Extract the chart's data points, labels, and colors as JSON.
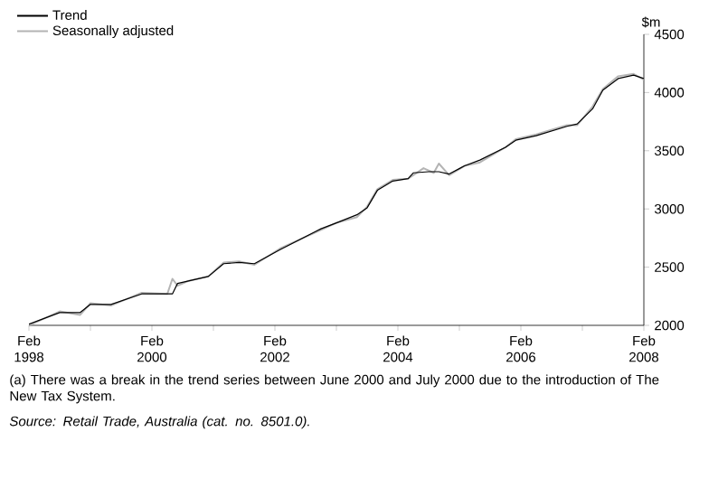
{
  "chart_data": {
    "type": "line",
    "ylabel": "$m",
    "xlim": [
      "1998-02",
      "2008-02"
    ],
    "ylim": [
      2000,
      4500
    ],
    "yticks": [
      2000,
      2500,
      3000,
      3500,
      4000,
      4500
    ],
    "xticks": [
      {
        "value": "1998-02",
        "label": "Feb 1998"
      },
      {
        "value": "1999-02",
        "label": null
      },
      {
        "value": "2000-02",
        "label": "Feb 2000"
      },
      {
        "value": "2001-02",
        "label": null
      },
      {
        "value": "2002-02",
        "label": "Feb 2002"
      },
      {
        "value": "2003-02",
        "label": null
      },
      {
        "value": "2004-02",
        "label": "Feb 2004"
      },
      {
        "value": "2005-02",
        "label": null
      },
      {
        "value": "2006-02",
        "label": "Feb 2006"
      },
      {
        "value": "2007-02",
        "label": null
      },
      {
        "value": "2008-02",
        "label": "Feb 2008"
      }
    ],
    "legend": "top left",
    "grid": false,
    "series": [
      {
        "name": "Trend",
        "color": "#000000",
        "x": [
          "1998-02",
          "1998-08",
          "1998-12",
          "1999-02",
          "1999-06",
          "1999-12",
          "2000-06",
          "2000-07",
          "2001-01",
          "2001-04",
          "2001-07",
          "2001-10",
          "2002-03",
          "2002-11",
          "2003-02",
          "2003-06",
          "2003-08",
          "2003-10",
          "2004-01",
          "2004-04",
          "2004-05",
          "2004-08",
          "2004-10",
          "2004-12",
          "2005-03",
          "2005-06",
          "2005-11",
          "2006-01",
          "2006-05",
          "2006-11",
          "2007-01",
          "2007-04",
          "2007-06",
          "2007-09",
          "2007-12",
          "2008-02"
        ],
        "values": [
          2010,
          2110,
          2110,
          2180,
          2180,
          2270,
          2270,
          2360,
          2420,
          2530,
          2540,
          2530,
          2650,
          2830,
          2880,
          2950,
          3010,
          3160,
          3240,
          3260,
          3310,
          3320,
          3320,
          3300,
          3370,
          3420,
          3530,
          3590,
          3630,
          3710,
          3730,
          3860,
          4020,
          4120,
          4150,
          4120
        ]
      },
      {
        "name": "Seasonally adjusted",
        "color": "#b4b4b4",
        "x": [
          "1998-02",
          "1998-08",
          "1998-12",
          "1999-02",
          "1999-06",
          "1999-12",
          "2000-05",
          "2000-06",
          "2000-07",
          "2000-09",
          "2001-01",
          "2001-04",
          "2001-07",
          "2001-10",
          "2002-03",
          "2002-07",
          "2002-11",
          "2003-02",
          "2003-06",
          "2003-08",
          "2003-10",
          "2004-01",
          "2004-04",
          "2004-07",
          "2004-09",
          "2004-10",
          "2004-12",
          "2005-03",
          "2005-06",
          "2005-11",
          "2006-01",
          "2006-05",
          "2006-11",
          "2007-01",
          "2007-04",
          "2007-06",
          "2007-09",
          "2007-12",
          "2008-02"
        ],
        "values": [
          2000,
          2120,
          2090,
          2190,
          2170,
          2280,
          2270,
          2400,
          2340,
          2380,
          2420,
          2540,
          2550,
          2520,
          2660,
          2740,
          2820,
          2880,
          2930,
          3020,
          3170,
          3250,
          3260,
          3350,
          3310,
          3390,
          3290,
          3370,
          3400,
          3530,
          3600,
          3640,
          3720,
          3720,
          3880,
          4030,
          4140,
          4160,
          4110
        ]
      }
    ],
    "annotations": [
      "(a) There was a break in the trend series between June 2000 and July 2000 due to the introduction of The New Tax System.",
      "Source: Retail Trade, Australia (cat. no. 8501.0)."
    ]
  }
}
